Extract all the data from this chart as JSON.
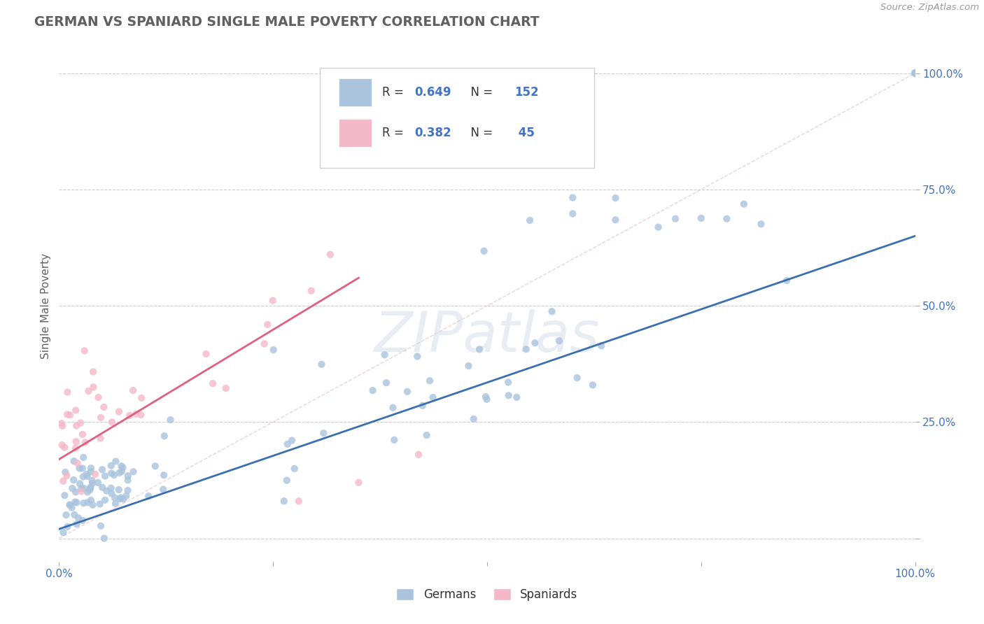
{
  "title": "GERMAN VS SPANIARD SINGLE MALE POVERTY CORRELATION CHART",
  "source": "Source: ZipAtlas.com",
  "ylabel": "Single Male Poverty",
  "xlim": [
    0,
    1.0
  ],
  "ylim": [
    -0.05,
    1.05
  ],
  "xtick_positions": [
    0.0,
    0.25,
    0.5,
    0.75,
    1.0
  ],
  "xticklabels": [
    "0.0%",
    "",
    "",
    "",
    "100.0%"
  ],
  "ytick_positions": [
    0.0,
    0.25,
    0.5,
    0.75,
    1.0
  ],
  "yticklabels": [
    "",
    "25.0%",
    "50.0%",
    "75.0%",
    "100.0%"
  ],
  "german_color": "#aac4de",
  "spaniard_color": "#f4b8c8",
  "german_line_color": "#3a6fb0",
  "spaniard_line_color": "#e06080",
  "diagonal_color": "#c8c8c8",
  "watermark": "ZIPatlas",
  "legend_R_german": "0.649",
  "legend_N_german": "152",
  "legend_R_spaniard": "0.382",
  "legend_N_spaniard": "45",
  "background_color": "#ffffff",
  "grid_color": "#cccccc",
  "title_color": "#606060",
  "axis_label_color": "#606060",
  "tick_label_color": "#4472c4",
  "legend_text_color": "#4472c4",
  "legend_R_color": "#333333",
  "bottom_legend_german": "Germans",
  "bottom_legend_spaniard": "Spaniards",
  "german_line_start_x": 0.0,
  "german_line_start_y": 0.02,
  "german_line_end_x": 1.0,
  "german_line_end_y": 0.65,
  "spaniard_line_start_x": 0.0,
  "spaniard_line_start_y": 0.17,
  "spaniard_line_end_x": 0.35,
  "spaniard_line_end_y": 0.56
}
